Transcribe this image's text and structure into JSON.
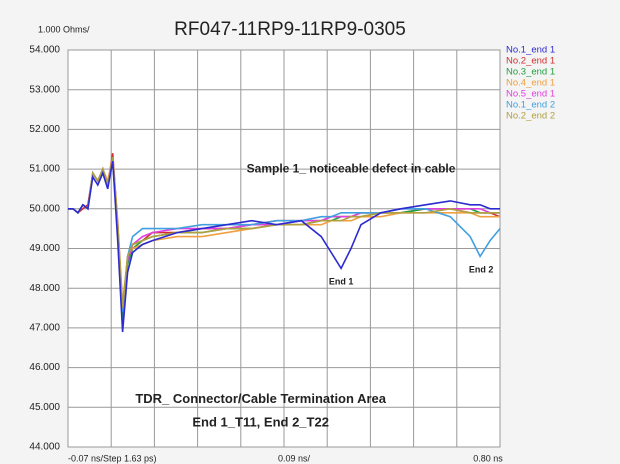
{
  "chart_data": {
    "type": "line",
    "title": "RF047-11RP9-11RP9-0305",
    "y_unit_label": "1.000 Ohms/",
    "x_axis_labels": [
      "-0.07 ns/Step 1.63 ps)",
      "0.09 ns/",
      "0.80 ns"
    ],
    "annotations": [
      {
        "text": "Sample 1_ noticeable defect in cable",
        "x": 0.5,
        "y": 51.0
      },
      {
        "text": "End 1",
        "x": 0.48,
        "y": 48.15
      },
      {
        "text": "End 2",
        "x": 0.762,
        "y": 48.45
      },
      {
        "text": "TDR_ Connector/Cable Termination Area",
        "x": 0.318,
        "y": 45.2
      },
      {
        "text": "End 1_T11, End 2_T22",
        "x": 0.318,
        "y": 44.6
      }
    ],
    "x": [
      -0.07,
      -0.06,
      -0.05,
      -0.04,
      -0.03,
      -0.02,
      -0.01,
      0.0,
      0.01,
      0.02,
      0.03,
      0.04,
      0.05,
      0.06,
      0.08,
      0.1,
      0.15,
      0.2,
      0.25,
      0.3,
      0.35,
      0.4,
      0.44,
      0.46,
      0.48,
      0.5,
      0.52,
      0.56,
      0.6,
      0.65,
      0.7,
      0.74,
      0.76,
      0.78,
      0.8
    ],
    "series": [
      {
        "name": "No.2_end 1",
        "color": "#d03030",
        "values": [
          50.0,
          50.0,
          49.9,
          50.0,
          50.1,
          50.9,
          50.7,
          51.0,
          50.6,
          51.4,
          49.6,
          47.5,
          48.7,
          49.1,
          49.2,
          49.4,
          49.4,
          49.5,
          49.5,
          49.6,
          49.7,
          49.7,
          49.7,
          49.8,
          49.8,
          49.8,
          49.9,
          49.9,
          49.9,
          50.0,
          50.0,
          49.9,
          49.9,
          49.9,
          49.8
        ]
      },
      {
        "name": "No.3_end 1",
        "color": "#20a040",
        "values": [
          50.0,
          50.0,
          49.9,
          50.1,
          50.0,
          50.9,
          50.7,
          51.0,
          50.6,
          51.3,
          49.5,
          47.2,
          48.6,
          49.0,
          49.2,
          49.3,
          49.4,
          49.4,
          49.5,
          49.5,
          49.6,
          49.6,
          49.7,
          49.7,
          49.8,
          49.8,
          49.8,
          49.9,
          49.9,
          50.0,
          50.0,
          50.0,
          49.9,
          49.9,
          49.9
        ]
      },
      {
        "name": "No.4_end 1",
        "color": "#f0a040",
        "values": [
          50.0,
          50.0,
          49.9,
          50.1,
          50.0,
          50.9,
          50.7,
          51.0,
          50.7,
          51.3,
          49.7,
          47.6,
          48.8,
          49.0,
          49.1,
          49.2,
          49.3,
          49.3,
          49.4,
          49.5,
          49.6,
          49.6,
          49.6,
          49.7,
          49.7,
          49.7,
          49.8,
          49.8,
          49.9,
          49.9,
          49.9,
          49.9,
          49.8,
          49.8,
          49.8
        ]
      },
      {
        "name": "No.5_end 1",
        "color": "#e040e0",
        "values": [
          50.0,
          50.0,
          49.9,
          50.1,
          50.0,
          50.9,
          50.7,
          51.0,
          50.6,
          51.3,
          49.6,
          47.4,
          48.7,
          49.1,
          49.3,
          49.4,
          49.5,
          49.5,
          49.5,
          49.6,
          49.6,
          49.7,
          49.7,
          49.8,
          49.8,
          49.8,
          49.9,
          49.9,
          50.0,
          50.0,
          50.0,
          50.0,
          50.0,
          49.9,
          49.9
        ]
      },
      {
        "name": "No.1_end 2",
        "color": "#40a0e0",
        "values": [
          50.0,
          50.0,
          49.9,
          50.1,
          50.0,
          50.9,
          50.7,
          51.0,
          50.6,
          51.2,
          49.5,
          47.4,
          48.8,
          49.3,
          49.5,
          49.5,
          49.5,
          49.6,
          49.6,
          49.6,
          49.7,
          49.7,
          49.8,
          49.8,
          49.9,
          49.9,
          49.9,
          49.9,
          50.0,
          50.0,
          49.8,
          49.3,
          48.8,
          49.2,
          49.5
        ]
      },
      {
        "name": "No.2_end 2",
        "color": "#b0a040",
        "values": [
          50.0,
          50.0,
          49.9,
          50.1,
          50.0,
          50.9,
          50.7,
          51.0,
          50.6,
          51.3,
          49.6,
          47.5,
          48.8,
          49.1,
          49.2,
          49.3,
          49.4,
          49.4,
          49.5,
          49.5,
          49.6,
          49.6,
          49.7,
          49.7,
          49.7,
          49.8,
          49.8,
          49.9,
          49.9,
          49.9,
          50.0,
          49.9,
          49.9,
          49.9,
          49.9
        ]
      },
      {
        "name": "No.1_end 1",
        "color": "#2b2bd0",
        "values": [
          50.0,
          50.0,
          49.9,
          50.1,
          50.0,
          50.8,
          50.6,
          50.9,
          50.5,
          51.2,
          49.2,
          46.9,
          48.4,
          48.9,
          49.1,
          49.2,
          49.4,
          49.5,
          49.6,
          49.7,
          49.6,
          49.7,
          49.3,
          48.9,
          48.5,
          49.0,
          49.6,
          49.9,
          50.0,
          50.1,
          50.2,
          50.1,
          50.1,
          50.0,
          50.0
        ]
      }
    ],
    "xlim": [
      -0.07,
      0.8
    ],
    "x_gridlines": [
      -0.07,
      0.017,
      0.104,
      0.191,
      0.278,
      0.365,
      0.452,
      0.539,
      0.626,
      0.713,
      0.8
    ],
    "ylim": [
      44,
      54
    ],
    "yticks": [
      {
        "value": 44,
        "label": "44.000"
      },
      {
        "value": 45,
        "label": "45.000"
      },
      {
        "value": 46,
        "label": "46.000"
      },
      {
        "value": 47,
        "label": "47.000"
      },
      {
        "value": 48,
        "label": "48.000"
      },
      {
        "value": 49,
        "label": "49.000"
      },
      {
        "value": 50,
        "label": "50.000"
      },
      {
        "value": 51,
        "label": "51.000"
      },
      {
        "value": 52,
        "label": "52.000"
      },
      {
        "value": 53,
        "label": "53.000"
      },
      {
        "value": 54,
        "label": "54.000"
      }
    ],
    "grid": true
  }
}
